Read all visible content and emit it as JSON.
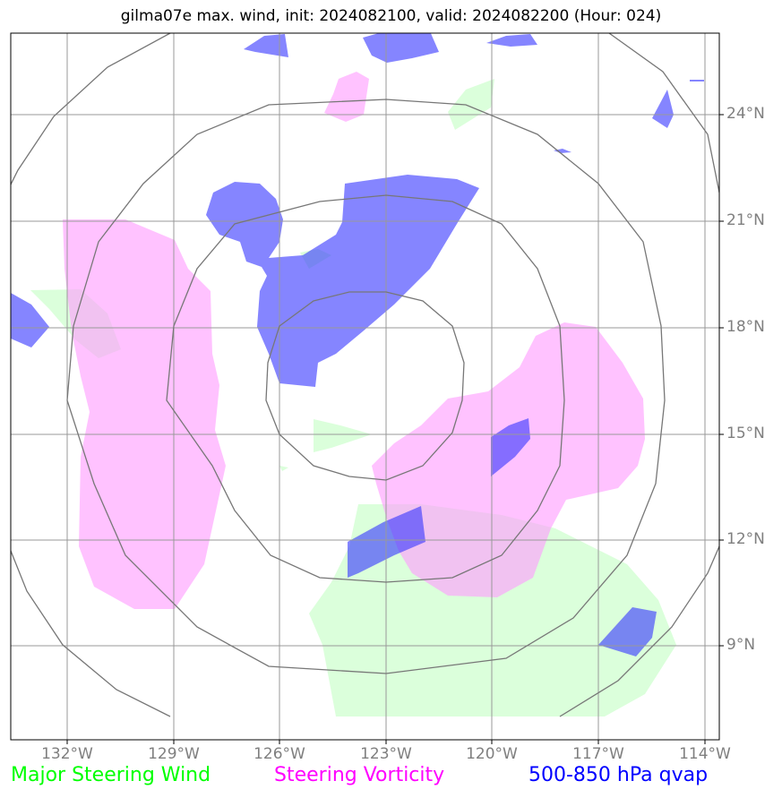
{
  "title": "gilma07e max. wind, init: 2024082100, valid: 2024082200 (Hour: 024)",
  "map": {
    "longitude_labels": [
      "132°W",
      "129°W",
      "126°W",
      "123°W",
      "120°W",
      "117°W",
      "114°W"
    ],
    "latitude_labels": [
      "24°N",
      "21°N",
      "18°N",
      "15°N",
      "12°N",
      "9°N"
    ]
  },
  "legend": [
    {
      "label": "Major Steering Wind",
      "color": "#00ff00"
    },
    {
      "label": "Steering Vorticity",
      "color": "#ff00ff"
    },
    {
      "label": "500-850 hPa qvap",
      "color": "#0000ff"
    }
  ],
  "colors": {
    "wind_fill": "#ccffcc",
    "vorticity_fill": "#ff99ff",
    "qvap_fill": "#3333ff",
    "grid": "#999999",
    "range_rings": "#777777"
  }
}
